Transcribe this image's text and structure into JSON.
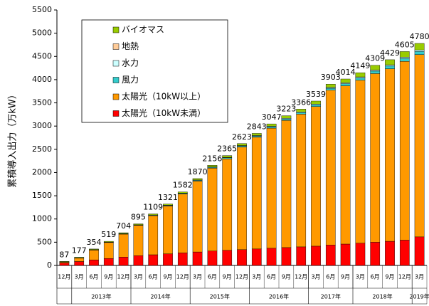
{
  "chart_data": {
    "type": "stacked_bar",
    "y_label": "累積導入出力（万kW）",
    "categories": [
      "12月",
      "3月",
      "6月",
      "9月",
      "12月",
      "3月",
      "6月",
      "9月",
      "12月",
      "3月",
      "6月",
      "9月",
      "12月",
      "3月",
      "6月",
      "9月",
      "12月",
      "3月",
      "6月",
      "9月",
      "3月",
      "6月",
      "9月",
      "12月",
      "3月"
    ],
    "years": [
      null,
      "2013年",
      "2013年",
      "2013年",
      "2013年",
      "2014年",
      "2014年",
      "2014年",
      "2014年",
      "2015年",
      "2015年",
      "2015年",
      "2015年",
      "2016年",
      "2016年",
      "2016年",
      "2016年",
      "2017年",
      "2017年",
      "2017年",
      "2018年",
      "2018年",
      "2018年",
      "2018年",
      "2019年"
    ],
    "series": [
      {
        "name": "太陽光（10kW未満）",
        "color": "#ff0000",
        "values": [
          50,
          85,
          120,
          150,
          180,
          210,
          230,
          250,
          270,
          290,
          310,
          325,
          340,
          355,
          370,
          385,
          400,
          415,
          440,
          460,
          480,
          500,
          520,
          545,
          615
        ]
      },
      {
        "name": "太陽光（10kW以上）",
        "color": "#ff9900",
        "values": [
          21,
          73,
          211,
          343,
          494,
          652,
          842,
          1029,
          1265,
          1526,
          1784,
          1971,
          2207,
          2405,
          2586,
          2738,
          2857,
          3005,
          3332,
          3407,
          3506,
          3630,
          3714,
          3848,
          3923
        ]
      },
      {
        "name": "風力",
        "color": "#33cccc",
        "values": [
          5,
          6,
          7,
          8,
          9,
          10,
          11,
          13,
          15,
          17,
          19,
          21,
          23,
          25,
          28,
          31,
          34,
          38,
          42,
          46,
          50,
          54,
          58,
          63,
          70
        ]
      },
      {
        "name": "水力",
        "color": "#ccffff",
        "values": [
          1,
          1,
          2,
          2,
          3,
          3,
          4,
          5,
          6,
          7,
          8,
          9,
          10,
          11,
          12,
          13,
          14,
          15,
          17,
          19,
          21,
          23,
          25,
          27,
          30
        ]
      },
      {
        "name": "地熱",
        "color": "#ffcc99",
        "values": [
          0,
          0,
          0,
          0,
          0,
          0,
          0,
          0,
          0,
          0,
          1,
          1,
          1,
          1,
          1,
          1,
          1,
          1,
          2,
          2,
          2,
          2,
          2,
          2,
          2
        ]
      },
      {
        "name": "バイオマス",
        "color": "#99cc00",
        "values": [
          10,
          12,
          14,
          16,
          18,
          20,
          22,
          24,
          26,
          30,
          34,
          38,
          42,
          46,
          50,
          55,
          60,
          65,
          70,
          80,
          90,
          100,
          110,
          120,
          140
        ]
      }
    ],
    "totals": [
      87,
      177,
      354,
      519,
      704,
      895,
      1109,
      1321,
      1582,
      1870,
      2156,
      2365,
      2623,
      2843,
      3047,
      3223,
      3366,
      3539,
      3903,
      4014,
      4149,
      4309,
      4429,
      4605,
      4780
    ],
    "ylim": [
      0,
      5500
    ],
    "yticks": [
      0,
      500,
      1000,
      1500,
      2000,
      2500,
      3000,
      3500,
      4000,
      4500,
      5000,
      5500
    ],
    "grid": false
  }
}
